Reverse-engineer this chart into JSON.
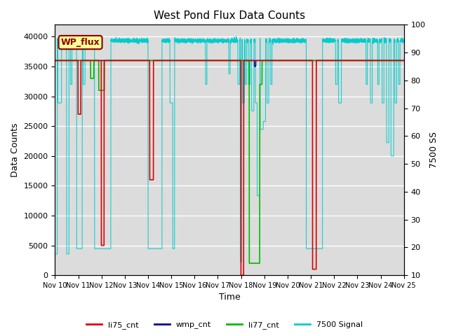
{
  "title": "West Pond Flux Data Counts",
  "ylabel_left": "Data Counts",
  "ylabel_right": "7500 SS",
  "xlabel": "Time",
  "ylim_left": [
    0,
    42000
  ],
  "ylim_right": [
    10,
    100
  ],
  "yticks_left": [
    0,
    5000,
    10000,
    15000,
    20000,
    25000,
    30000,
    35000,
    40000
  ],
  "yticks_right": [
    10,
    20,
    30,
    40,
    50,
    60,
    70,
    80,
    90,
    100
  ],
  "xtick_labels": [
    "Nov 10",
    "Nov 11",
    "Nov 12",
    "Nov 13",
    "Nov 14",
    "Nov 15",
    "Nov 16",
    "Nov 17",
    "Nov 18",
    "Nov 19",
    "Nov 20",
    "Nov 21",
    "Nov 22",
    "Nov 23",
    "Nov 24",
    "Nov 25"
  ],
  "background_color": "#dcdcdc",
  "legend_text_box": "WP_flux",
  "legend_box_color": "#ffff99",
  "legend_box_edge": "#8b0000",
  "li75_color": "#dd0000",
  "wmp_color": "#000099",
  "li77_color": "#00bb00",
  "signal7500_color": "#00cccc",
  "total_days": 15,
  "n_points": 6000
}
